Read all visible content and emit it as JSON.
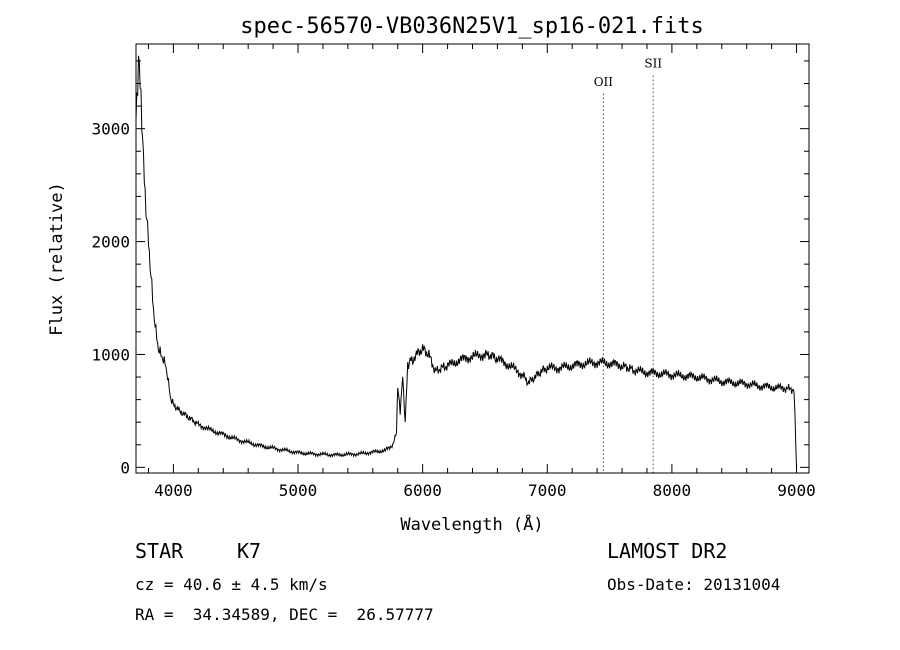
{
  "chart_data": {
    "type": "line",
    "title": "spec-56570-VB036N25V1_sp16-021.fits",
    "xlabel": "Wavelength (Å)",
    "ylabel": "Flux (relative)",
    "xlim": [
      3700,
      9100
    ],
    "ylim": [
      -50,
      3750
    ],
    "x_ticks": [
      4000,
      5000,
      6000,
      7000,
      8000,
      9000
    ],
    "x_tick_labels": [
      "4000",
      "5000",
      "6000",
      "7000",
      "8000",
      "9000"
    ],
    "y_ticks": [
      0,
      1000,
      2000,
      3000
    ],
    "y_tick_labels": [
      "0",
      "1000",
      "2000",
      "3000"
    ],
    "grid": false,
    "series": [
      {
        "name": "flux",
        "x": [
          3700,
          3720,
          3740,
          3760,
          3780,
          3800,
          3820,
          3840,
          3860,
          3880,
          3900,
          3920,
          3940,
          3960,
          3980,
          4000,
          4050,
          4100,
          4150,
          4200,
          4300,
          4400,
          4500,
          4600,
          4700,
          4800,
          4900,
          5000,
          5100,
          5200,
          5300,
          5400,
          5500,
          5600,
          5700,
          5760,
          5790,
          5800,
          5820,
          5840,
          5860,
          5880,
          5900,
          5920,
          5950,
          6000,
          6050,
          6100,
          6150,
          6200,
          6300,
          6400,
          6500,
          6550,
          6600,
          6700,
          6800,
          6850,
          6900,
          6950,
          7000,
          7100,
          7200,
          7300,
          7400,
          7500,
          7600,
          7650,
          7700,
          7800,
          7900,
          8000,
          8100,
          8200,
          8300,
          8400,
          8500,
          8600,
          8700,
          8800,
          8900,
          8980,
          9000
        ],
        "y": [
          3100,
          3600,
          3300,
          2700,
          2300,
          2000,
          1700,
          1400,
          1200,
          1050,
          1000,
          950,
          900,
          750,
          600,
          560,
          500,
          460,
          420,
          380,
          330,
          290,
          250,
          220,
          190,
          170,
          150,
          130,
          120,
          115,
          110,
          115,
          120,
          135,
          150,
          200,
          300,
          700,
          500,
          800,
          400,
          900,
          950,
          950,
          1000,
          1050,
          1000,
          850,
          880,
          900,
          950,
          980,
          1000,
          990,
          960,
          900,
          820,
          750,
          800,
          850,
          880,
          880,
          900,
          920,
          930,
          920,
          900,
          880,
          860,
          840,
          830,
          820,
          810,
          800,
          780,
          760,
          750,
          740,
          720,
          710,
          700,
          690,
          0
        ],
        "values": [
          3100,
          3600,
          3300,
          2700,
          2300,
          2000,
          1700,
          1400,
          1200,
          1050,
          1000,
          950,
          900,
          750,
          600,
          560,
          500,
          460,
          420,
          380,
          330,
          290,
          250,
          220,
          190,
          170,
          150,
          130,
          120,
          115,
          110,
          115,
          120,
          135,
          150,
          200,
          300,
          700,
          500,
          800,
          400,
          900,
          950,
          950,
          1000,
          1050,
          1000,
          850,
          880,
          900,
          950,
          980,
          1000,
          990,
          960,
          900,
          820,
          750,
          800,
          850,
          880,
          880,
          900,
          920,
          930,
          920,
          900,
          880,
          860,
          840,
          830,
          820,
          810,
          800,
          780,
          760,
          750,
          740,
          720,
          710,
          700,
          690,
          0
        ]
      }
    ],
    "annotations": [
      {
        "label": "OII",
        "x": 7450,
        "label_y": 3380
      },
      {
        "label": "SII",
        "x": 7850,
        "label_y": 3540
      }
    ]
  },
  "footer": {
    "object_class": "STAR",
    "subclass": "K7",
    "survey": "LAMOST DR2",
    "cz": "cz = 40.6 ± 4.5 km/s",
    "obs_date": "Obs-Date: 20131004",
    "radec": "RA =  34.34589, DEC =  26.57777"
  }
}
